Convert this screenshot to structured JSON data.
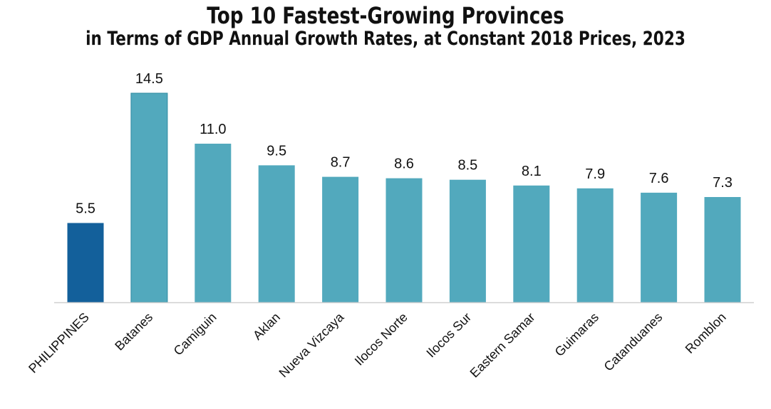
{
  "title": "Top 10 Fastest-Growing Provinces",
  "subtitle": "in Terms of GDP Annual Growth Rates, at Constant 2018 Prices, 2023",
  "colors": {
    "highlight_bar": "#13609b",
    "bar": "#52a9bd",
    "baseline": "#d0d0d0"
  },
  "chart_data": {
    "type": "bar",
    "title": "Top 10 Fastest-Growing Provinces",
    "subtitle": "in Terms of GDP Annual Growth Rates, at Constant 2018 Prices, 2023",
    "categories": [
      "PHILIPPINES",
      "Batanes",
      "Camiguin",
      "Aklan",
      "Nueva Vizcaya",
      "Ilocos Norte",
      "Ilocos Sur",
      "Eastern Samar",
      "Guimaras",
      "Catanduanes",
      "Romblon"
    ],
    "values": [
      5.5,
      14.5,
      11.0,
      9.5,
      8.7,
      8.6,
      8.5,
      8.1,
      7.9,
      7.6,
      7.3
    ],
    "value_labels": [
      "5.5",
      "14.5",
      "11.0",
      "9.5",
      "8.7",
      "8.6",
      "8.5",
      "8.1",
      "7.9",
      "7.6",
      "7.3"
    ],
    "highlight_category": "PHILIPPINES",
    "xlabel": "",
    "ylabel": "",
    "ylim": [
      0,
      14.5
    ],
    "grid": false,
    "legend": "none"
  }
}
